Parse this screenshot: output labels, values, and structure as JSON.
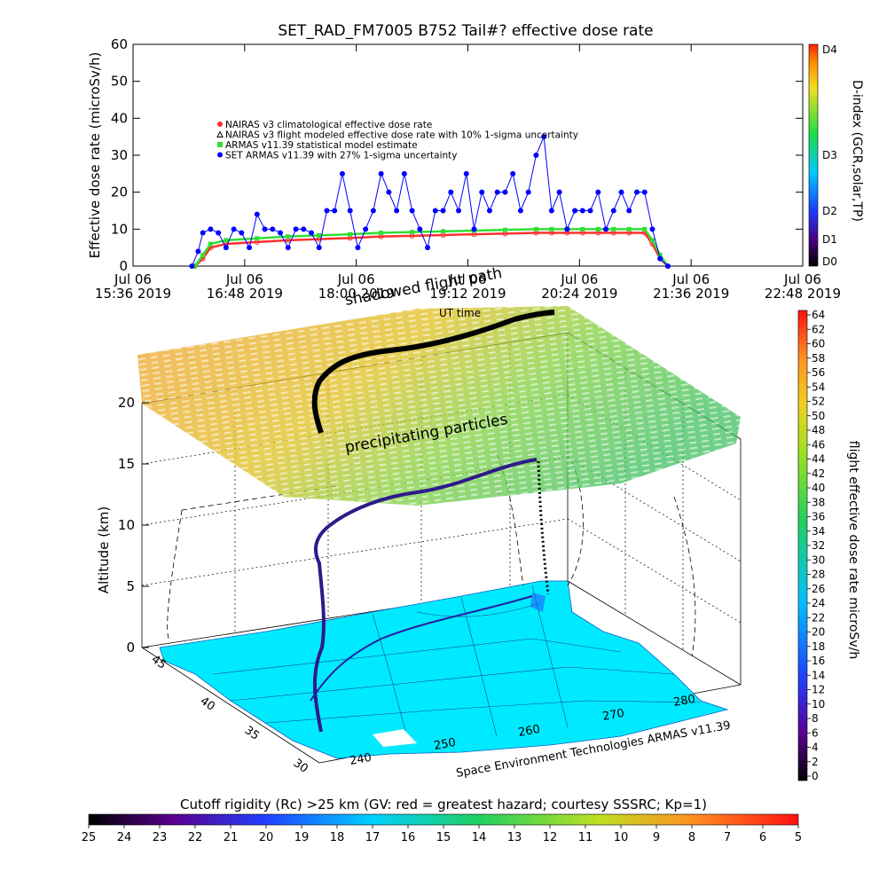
{
  "chart_data": [
    {
      "type": "line",
      "title": "SET_RAD_FM7005  B752 Tail#? effective dose rate",
      "ylabel": "Effective dose rate (microSv/h)",
      "ylim": [
        0,
        60
      ],
      "yticks": [
        "0",
        "10",
        "20",
        "30",
        "40",
        "50",
        "60"
      ],
      "x_tick_labels": [
        [
          "Jul 06",
          "15:36 2019"
        ],
        [
          "Jul 06",
          "16:48 2019"
        ],
        [
          "Jul 06",
          "18:00 2019"
        ],
        [
          "Jul 06",
          "19:12 2019"
        ],
        [
          "Jul 06",
          "20:24 2019"
        ],
        [
          "Jul 06",
          "21:36 2019"
        ],
        [
          "Jul 06",
          "22:48 2019"
        ]
      ],
      "x_minutes": [
        0,
        72,
        144,
        216,
        288,
        360,
        432
      ],
      "legend": [
        {
          "label": "NAIRAS v3 climatological effective dose rate",
          "color": "#ff3030",
          "marker": "circle"
        },
        {
          "label": "NAIRAS v3 flight modeled effective dose rate with 10% 1-sigma uncertainty",
          "color": "#000000",
          "marker": "triangle"
        },
        {
          "label": "ARMAS v11.39 statistical model estimate",
          "color": "#33dd33",
          "marker": "star"
        },
        {
          "label": "SET ARMAS v11.39 with 27% 1-sigma uncertainty",
          "color": "#0000ff",
          "marker": "circle"
        }
      ],
      "series": [
        {
          "name": "NAIRAS v3 climatological effective dose rate",
          "x": [
            40,
            45,
            50,
            60,
            80,
            100,
            120,
            140,
            160,
            180,
            200,
            220,
            240,
            260,
            270,
            280,
            290,
            300,
            310,
            320,
            330,
            335,
            340,
            345
          ],
          "values": [
            0,
            2,
            5,
            6,
            6.5,
            7,
            7.3,
            7.6,
            8,
            8.2,
            8.4,
            8.6,
            8.8,
            9,
            9,
            9,
            9,
            9,
            9,
            9,
            9,
            6,
            2,
            0
          ]
        },
        {
          "name": "ARMAS v11.39 statistical model estimate",
          "x": [
            40,
            45,
            50,
            60,
            80,
            100,
            120,
            140,
            160,
            180,
            200,
            220,
            240,
            260,
            270,
            280,
            290,
            300,
            310,
            320,
            330,
            335,
            340,
            345
          ],
          "values": [
            0,
            3,
            6,
            7,
            7.5,
            8,
            8.3,
            8.6,
            9,
            9.2,
            9.4,
            9.6,
            9.8,
            10,
            10,
            10,
            10,
            10,
            10,
            10,
            10,
            7,
            3,
            0
          ]
        },
        {
          "name": "SET ARMAS v11.39 with 27% 1-sigma uncertainty",
          "x": [
            38,
            42,
            45,
            50,
            55,
            60,
            65,
            70,
            75,
            80,
            85,
            90,
            95,
            100,
            105,
            110,
            115,
            120,
            125,
            130,
            135,
            140,
            145,
            150,
            155,
            160,
            165,
            170,
            175,
            180,
            185,
            190,
            195,
            200,
            205,
            210,
            215,
            220,
            225,
            230,
            235,
            240,
            245,
            250,
            255,
            260,
            265,
            270,
            275,
            280,
            285,
            290,
            295,
            300,
            305,
            310,
            315,
            320,
            325,
            330,
            335,
            340,
            345
          ],
          "values": [
            0,
            4,
            9,
            10,
            9,
            5,
            10,
            9,
            5,
            14,
            10,
            10,
            9,
            5,
            10,
            10,
            9,
            5,
            15,
            15,
            25,
            15,
            5,
            10,
            15,
            25,
            20,
            15,
            25,
            15,
            10,
            5,
            15,
            15,
            20,
            15,
            25,
            10,
            20,
            15,
            20,
            20,
            25,
            15,
            20,
            30,
            35,
            15,
            20,
            10,
            15,
            15,
            15,
            20,
            10,
            15,
            20,
            15,
            20,
            20,
            10,
            2,
            0
          ]
        }
      ]
    },
    {
      "type": "scatter",
      "subtype": "3d-surface-flight-path",
      "zlabel": "Altitude (km)",
      "zticks": [
        "0",
        "5",
        "10",
        "15",
        "20"
      ],
      "lat_ticks": [
        "30",
        "35",
        "40",
        "45"
      ],
      "lon_ticks": [
        "240",
        "250",
        "260",
        "270",
        "280"
      ],
      "annotations": [
        "shadowed flight path",
        "UT time",
        "precipitating particles",
        "Space Environment Technologies ARMAS v11.39"
      ],
      "dose_colorbar": {
        "label": "flight effective dose rate microSv/h",
        "ticks": [
          "0",
          "2",
          "4",
          "6",
          "8",
          "10",
          "12",
          "14",
          "16",
          "18",
          "20",
          "22",
          "24",
          "26",
          "28",
          "30",
          "32",
          "34",
          "36",
          "38",
          "40",
          "42",
          "44",
          "46",
          "48",
          "50",
          "52",
          "54",
          "56",
          "58",
          "60",
          "62",
          "64"
        ]
      },
      "dindex_colorbar": {
        "label": "D-index (GCR,solar,TP)",
        "ticks": [
          "D0",
          "D1",
          "D2",
          "D3",
          "D4"
        ]
      },
      "rc_colorbar": {
        "title": "Cutoff rigidity (Rc) >25 km (GV: red = greatest hazard; courtesy SSSRC; Kp=1)",
        "ticks": [
          "25",
          "24",
          "23",
          "22",
          "21",
          "20",
          "19",
          "18",
          "17",
          "16",
          "15",
          "14",
          "13",
          "12",
          "11",
          "10",
          "9",
          "8",
          "7",
          "6",
          "5"
        ]
      }
    }
  ]
}
